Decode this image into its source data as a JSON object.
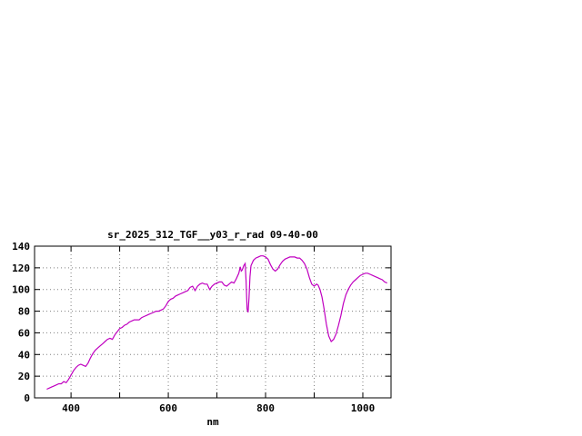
{
  "chart_data": {
    "type": "line",
    "title": "sr_2025_312_TGF__y03_r_rad 09-40-00",
    "xlabel": "nm",
    "ylabel": "",
    "xlim": [
      325,
      1058
    ],
    "ylim": [
      0,
      140
    ],
    "x_tick_labels": [
      400,
      600,
      800,
      1000
    ],
    "x_gridlines": [
      400,
      500,
      600,
      700,
      800,
      900,
      1000
    ],
    "y_ticks": [
      0,
      20,
      40,
      60,
      80,
      100,
      120,
      140
    ],
    "grid": true,
    "legend": "none",
    "line_color": "#C000C0",
    "series": [
      {
        "name": "sr_2025_312_TGF__y03_r_rad",
        "points": [
          [
            350,
            8
          ],
          [
            355,
            9
          ],
          [
            360,
            10
          ],
          [
            365,
            11
          ],
          [
            370,
            12
          ],
          [
            375,
            13
          ],
          [
            380,
            13
          ],
          [
            385,
            15
          ],
          [
            390,
            14
          ],
          [
            395,
            17
          ],
          [
            400,
            21
          ],
          [
            405,
            25
          ],
          [
            410,
            28
          ],
          [
            415,
            30
          ],
          [
            420,
            31
          ],
          [
            425,
            30
          ],
          [
            430,
            29
          ],
          [
            435,
            32
          ],
          [
            440,
            37
          ],
          [
            445,
            41
          ],
          [
            450,
            44
          ],
          [
            455,
            46
          ],
          [
            460,
            48
          ],
          [
            465,
            50
          ],
          [
            470,
            52
          ],
          [
            475,
            54
          ],
          [
            480,
            55
          ],
          [
            485,
            54
          ],
          [
            490,
            58
          ],
          [
            495,
            61
          ],
          [
            500,
            64
          ],
          [
            505,
            65
          ],
          [
            510,
            67
          ],
          [
            515,
            68
          ],
          [
            520,
            70
          ],
          [
            525,
            71
          ],
          [
            530,
            72
          ],
          [
            535,
            72
          ],
          [
            540,
            72
          ],
          [
            545,
            74
          ],
          [
            550,
            75
          ],
          [
            555,
            76
          ],
          [
            560,
            77
          ],
          [
            565,
            78
          ],
          [
            570,
            79
          ],
          [
            575,
            80
          ],
          [
            580,
            80
          ],
          [
            585,
            81
          ],
          [
            590,
            82
          ],
          [
            595,
            85
          ],
          [
            600,
            89
          ],
          [
            605,
            91
          ],
          [
            610,
            92
          ],
          [
            615,
            94
          ],
          [
            620,
            95
          ],
          [
            625,
            96
          ],
          [
            630,
            97
          ],
          [
            635,
            98
          ],
          [
            640,
            99
          ],
          [
            645,
            102
          ],
          [
            650,
            103
          ],
          [
            655,
            99
          ],
          [
            660,
            103
          ],
          [
            665,
            105
          ],
          [
            670,
            106
          ],
          [
            675,
            105
          ],
          [
            680,
            105
          ],
          [
            685,
            100
          ],
          [
            690,
            103
          ],
          [
            695,
            105
          ],
          [
            700,
            106
          ],
          [
            705,
            107
          ],
          [
            710,
            107
          ],
          [
            715,
            104
          ],
          [
            720,
            103
          ],
          [
            725,
            105
          ],
          [
            730,
            107
          ],
          [
            735,
            106
          ],
          [
            740,
            110
          ],
          [
            745,
            115
          ],
          [
            748,
            121
          ],
          [
            750,
            117
          ],
          [
            752,
            118
          ],
          [
            755,
            122
          ],
          [
            758,
            124
          ],
          [
            760,
            108
          ],
          [
            762,
            82
          ],
          [
            764,
            79
          ],
          [
            766,
            92
          ],
          [
            768,
            112
          ],
          [
            770,
            122
          ],
          [
            775,
            127
          ],
          [
            780,
            129
          ],
          [
            785,
            130
          ],
          [
            790,
            131
          ],
          [
            795,
            131
          ],
          [
            800,
            130
          ],
          [
            805,
            128
          ],
          [
            810,
            123
          ],
          [
            815,
            119
          ],
          [
            820,
            117
          ],
          [
            825,
            119
          ],
          [
            830,
            123
          ],
          [
            835,
            126
          ],
          [
            840,
            128
          ],
          [
            845,
            129
          ],
          [
            850,
            130
          ],
          [
            855,
            130
          ],
          [
            860,
            130
          ],
          [
            865,
            129
          ],
          [
            870,
            129
          ],
          [
            875,
            127
          ],
          [
            880,
            124
          ],
          [
            885,
            119
          ],
          [
            890,
            111
          ],
          [
            895,
            105
          ],
          [
            900,
            103
          ],
          [
            905,
            105
          ],
          [
            908,
            104
          ],
          [
            912,
            100
          ],
          [
            916,
            93
          ],
          [
            920,
            83
          ],
          [
            925,
            68
          ],
          [
            930,
            57
          ],
          [
            935,
            52
          ],
          [
            940,
            54
          ],
          [
            945,
            59
          ],
          [
            950,
            67
          ],
          [
            955,
            76
          ],
          [
            960,
            87
          ],
          [
            965,
            95
          ],
          [
            970,
            100
          ],
          [
            975,
            104
          ],
          [
            980,
            107
          ],
          [
            985,
            109
          ],
          [
            990,
            111
          ],
          [
            995,
            113
          ],
          [
            1000,
            114
          ],
          [
            1005,
            115
          ],
          [
            1010,
            115
          ],
          [
            1015,
            114
          ],
          [
            1020,
            113
          ],
          [
            1025,
            112
          ],
          [
            1030,
            111
          ],
          [
            1035,
            110
          ],
          [
            1040,
            109
          ],
          [
            1045,
            107
          ],
          [
            1050,
            106
          ]
        ]
      }
    ]
  }
}
